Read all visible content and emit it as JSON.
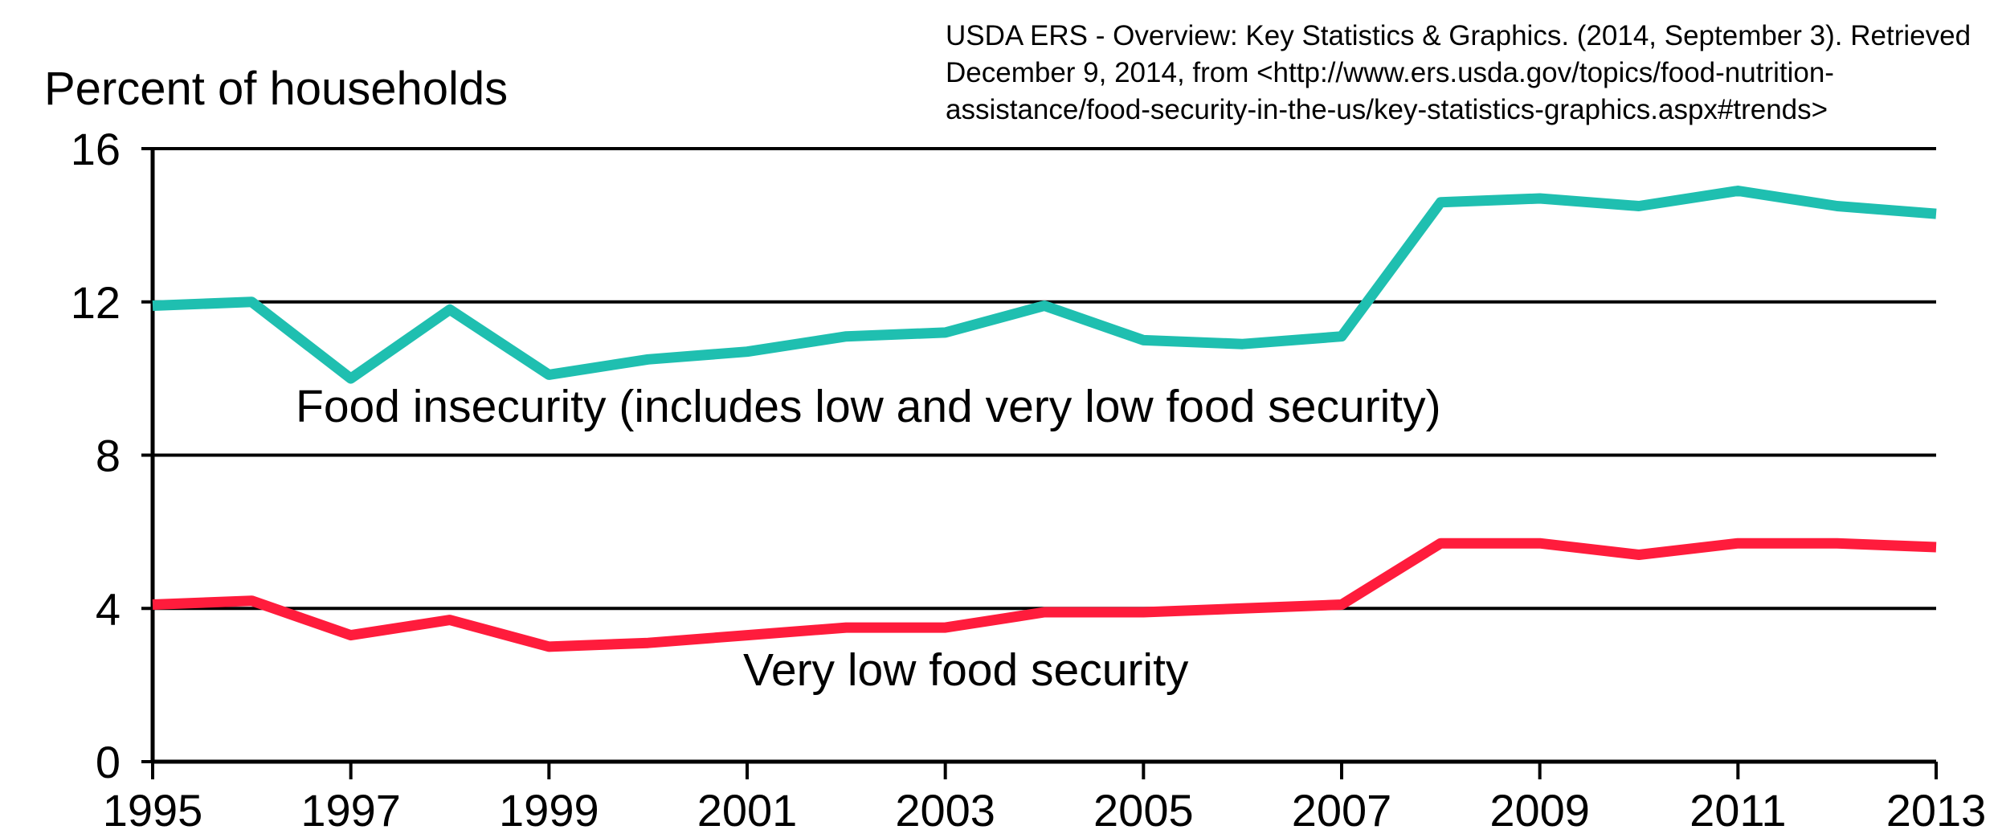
{
  "source": {
    "lines": [
      "USDA ERS - Overview: Key Statistics & Graphics. (2014, September 3). Retrieved",
      "December 9, 2014, from <http://www.ers.usda.gov/topics/food-nutrition-",
      "assistance/food-security-in-the-us/key-statistics-graphics.aspx#trends>"
    ]
  },
  "chart_data": {
    "type": "line",
    "title": "",
    "xlabel": "",
    "ylabel": "Percent of households",
    "xlim": [
      1995,
      2013
    ],
    "ylim": [
      0,
      16
    ],
    "x_ticks": [
      "1995",
      "1997",
      "1999",
      "2001",
      "2003",
      "2005",
      "2007",
      "2009",
      "2011",
      "2013"
    ],
    "y_ticks": [
      "0",
      "4",
      "8",
      "12",
      "16"
    ],
    "grid": "horizontal",
    "legend": "none (series labeled inline)",
    "x": [
      1995,
      1996,
      1997,
      1998,
      1999,
      2000,
      2001,
      2002,
      2003,
      2004,
      2005,
      2006,
      2007,
      2008,
      2009,
      2010,
      2011,
      2012,
      2013
    ],
    "series": [
      {
        "name": "Food insecurity (includes low and very low food security)",
        "color": "#1fbfb0",
        "values": [
          11.9,
          12.0,
          10.0,
          11.8,
          10.1,
          10.5,
          10.7,
          11.1,
          11.2,
          11.9,
          11.0,
          10.9,
          11.1,
          14.6,
          14.7,
          14.5,
          14.9,
          14.5,
          14.3
        ]
      },
      {
        "name": "Very low food security",
        "color": "#ff1c3c",
        "values": [
          4.1,
          4.2,
          3.3,
          3.7,
          3.0,
          3.1,
          3.3,
          3.5,
          3.5,
          3.9,
          3.9,
          4.0,
          4.1,
          5.7,
          5.7,
          5.4,
          5.7,
          5.7,
          5.6
        ]
      }
    ]
  }
}
